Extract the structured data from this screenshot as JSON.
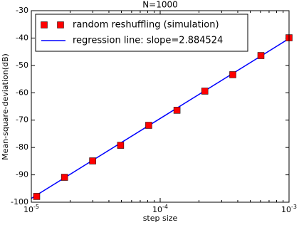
{
  "chart_data": {
    "type": "scatter",
    "title": "N=1000",
    "xlabel": "step size",
    "ylabel": "Mean-square-deviation(dB)",
    "xscale": "log",
    "xlim": [
      1e-05,
      0.001
    ],
    "xticks": [
      {
        "value": 1e-05,
        "label": "10-5"
      },
      {
        "value": 0.0001,
        "label": "10-4"
      },
      {
        "value": 0.001,
        "label": "10-3"
      }
    ],
    "ylim": [
      -100,
      -30
    ],
    "yticks": [
      -100,
      -90,
      -80,
      -70,
      -60,
      -50,
      -40,
      -30
    ],
    "legend": "upper left",
    "series": [
      {
        "name": "random reshuffling (simulation)",
        "type": "scatter",
        "color": "#ff0000",
        "x": [
          1.1e-05,
          1.81e-05,
          2.99e-05,
          4.93e-05,
          8.15e-05,
          0.000135,
          0.000222,
          0.000366,
          0.000605,
          0.001
        ],
        "values": [
          -97.9,
          -90.9,
          -84.9,
          -79.2,
          -71.9,
          -66.4,
          -59.4,
          -53.4,
          -46.4,
          -39.9
        ]
      },
      {
        "name": "regression line: slope=2.884524",
        "type": "line",
        "color": "#0000ff",
        "x": [
          1e-05,
          0.001
        ],
        "values": [
          -98.6,
          -40.2
        ]
      }
    ]
  }
}
